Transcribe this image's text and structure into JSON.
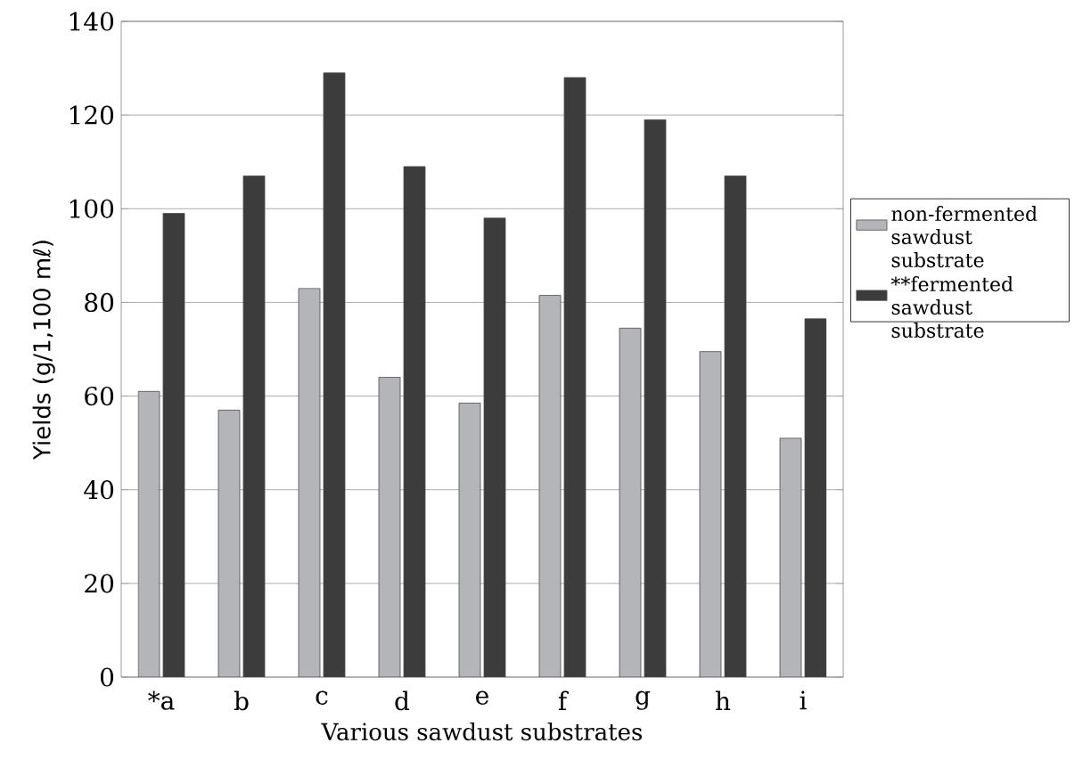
{
  "chart_data": {
    "type": "bar",
    "xlabel": "Various sawdust substrates",
    "ylabel": "Yields (g/1,100 mℓ)",
    "categories": [
      "*a",
      "b",
      "c",
      "d",
      "e",
      "f",
      "g",
      "h",
      "i"
    ],
    "series": [
      {
        "name": "non-fermented sawdust substrate",
        "color": "#b4b5b9",
        "values": [
          61,
          57,
          83,
          64,
          58.5,
          81.5,
          74.5,
          69.5,
          51
        ]
      },
      {
        "name": "**fermented sawdust substrate",
        "color": "#3c3c3c",
        "values": [
          99,
          107,
          129,
          109,
          98,
          128,
          119,
          107,
          76.5
        ]
      }
    ],
    "ylim": [
      0,
      140
    ],
    "yticks": [
      0,
      20,
      40,
      60,
      80,
      100,
      120,
      140
    ],
    "grid": "y",
    "legend": "right"
  }
}
